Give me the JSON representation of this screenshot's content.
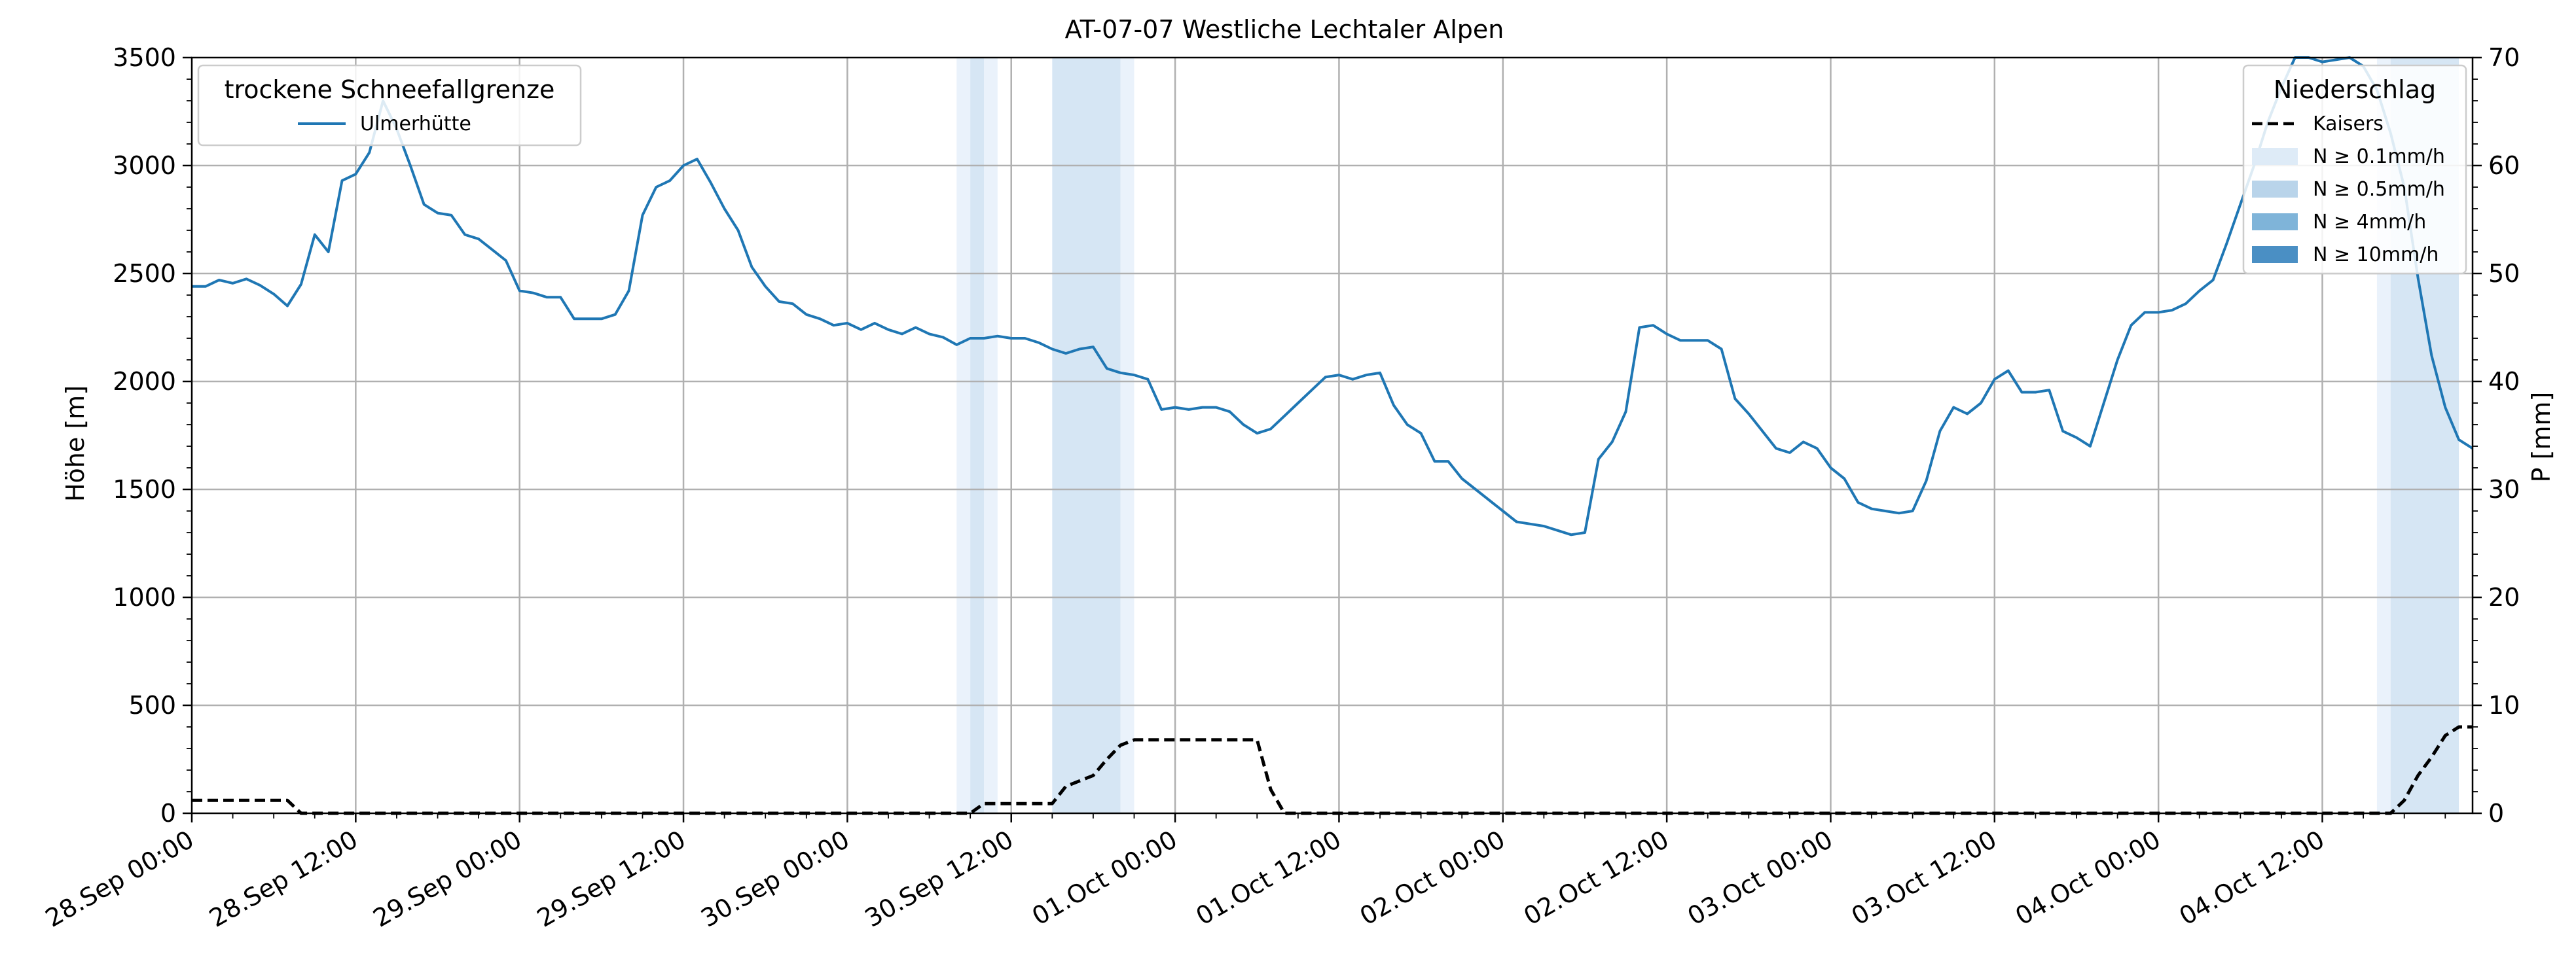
{
  "chart_data": {
    "type": "line",
    "title": "AT-07-07 Westliche Lechtaler Alpen",
    "ylabel": "Höhe [m]",
    "y2label": "P [mm]",
    "x_range_hours": [
      0,
      167
    ],
    "ylim": [
      0,
      3500
    ],
    "y2lim": [
      0,
      70
    ],
    "yticks": [
      "0",
      "500",
      "1000",
      "1500",
      "2000",
      "2500",
      "3000",
      "3500"
    ],
    "y2ticks": [
      "0",
      "10",
      "20",
      "30",
      "40",
      "50",
      "60",
      "70"
    ],
    "xticks": [
      {
        "h": 0,
        "label": "28.Sep 00:00"
      },
      {
        "h": 12,
        "label": "28.Sep 12:00"
      },
      {
        "h": 24,
        "label": "29.Sep 00:00"
      },
      {
        "h": 36,
        "label": "29.Sep 12:00"
      },
      {
        "h": 48,
        "label": "30.Sep 00:00"
      },
      {
        "h": 60,
        "label": "30.Sep 12:00"
      },
      {
        "h": 72,
        "label": "01.Oct 00:00"
      },
      {
        "h": 84,
        "label": "01.Oct 12:00"
      },
      {
        "h": 96,
        "label": "02.Oct 00:00"
      },
      {
        "h": 108,
        "label": "02.Oct 12:00"
      },
      {
        "h": 120,
        "label": "03.Oct 00:00"
      },
      {
        "h": 132,
        "label": "03.Oct 12:00"
      },
      {
        "h": 144,
        "label": "04.Oct 00:00"
      },
      {
        "h": 156,
        "label": "04.Oct 12:00"
      }
    ],
    "grid": true,
    "legend_left": {
      "title": "trockene Schneefallgrenze",
      "entries": [
        {
          "label": "Ulmerhütte",
          "color": "#1f77b4"
        }
      ]
    },
    "legend_right": {
      "title": "Niederschlag",
      "entries": [
        {
          "label": "Kaisers",
          "style": "dashed",
          "color": "#000000"
        },
        {
          "label": "N ≥ 0.1mm/h",
          "color": "#deebf7"
        },
        {
          "label": "N ≥ 0.5mm/h",
          "color": "#b9d4ea"
        },
        {
          "label": "N ≥ 4mm/h",
          "color": "#7fb4d9"
        },
        {
          "label": "N ≥ 10mm/h",
          "color": "#4a8fc4"
        }
      ]
    },
    "precip_bands": [
      {
        "from": 56,
        "to": 57,
        "level": 0
      },
      {
        "from": 57,
        "to": 58,
        "level": 1
      },
      {
        "from": 58,
        "to": 59,
        "level": 0
      },
      {
        "from": 63,
        "to": 68,
        "level": 1
      },
      {
        "from": 68,
        "to": 69,
        "level": 0
      },
      {
        "from": 160,
        "to": 161,
        "level": 0
      },
      {
        "from": 161,
        "to": 166,
        "level": 1
      }
    ],
    "series": [
      {
        "name": "Ulmerhütte",
        "axis": "left",
        "color": "#1f77b4",
        "x": [
          0,
          1,
          2,
          3,
          4,
          5,
          6,
          7,
          8,
          9,
          10,
          11,
          12,
          13,
          14,
          15,
          16,
          17,
          18,
          19,
          20,
          21,
          22,
          23,
          24,
          25,
          26,
          27,
          28,
          29,
          30,
          31,
          32,
          33,
          34,
          35,
          36,
          37,
          38,
          39,
          40,
          41,
          42,
          43,
          44,
          45,
          46,
          47,
          48,
          49,
          50,
          51,
          52,
          53,
          54,
          55,
          56,
          57,
          58,
          59,
          60,
          61,
          62,
          63,
          64,
          65,
          66,
          67,
          68,
          69,
          70,
          71,
          72,
          73,
          74,
          75,
          76,
          77,
          78,
          79,
          80,
          81,
          82,
          83,
          84,
          85,
          86,
          87,
          88,
          89,
          90,
          91,
          92,
          93,
          94,
          95,
          96,
          97,
          98,
          99,
          100,
          101,
          102,
          103,
          104,
          105,
          106,
          107,
          108,
          109,
          110,
          111,
          112,
          113,
          114,
          115,
          116,
          117,
          118,
          119,
          120,
          121,
          122,
          123,
          124,
          125,
          126,
          127,
          128,
          129,
          130,
          131,
          132,
          133,
          134,
          135,
          136,
          137,
          138,
          139,
          140,
          141,
          142,
          143,
          144,
          145,
          146,
          147,
          148,
          149,
          150,
          151,
          152,
          153,
          154,
          155,
          156,
          157,
          158,
          159,
          160,
          161,
          162,
          163,
          164,
          165,
          166,
          167
        ],
        "y": [
          2440,
          2440,
          2470,
          2455,
          2475,
          2445,
          2405,
          2350,
          2450,
          2680,
          2600,
          2930,
          2960,
          3060,
          3300,
          3170,
          3000,
          2820,
          2780,
          2770,
          2680,
          2660,
          2610,
          2560,
          2420,
          2410,
          2390,
          2390,
          2290,
          2290,
          2290,
          2310,
          2420,
          2770,
          2900,
          2930,
          3000,
          3030,
          2920,
          2800,
          2700,
          2530,
          2440,
          2370,
          2360,
          2310,
          2290,
          2260,
          2270,
          2240,
          2270,
          2240,
          2220,
          2250,
          2220,
          2205,
          2170,
          2200,
          2200,
          2210,
          2200,
          2200,
          2180,
          2150,
          2130,
          2150,
          2160,
          2060,
          2040,
          2030,
          2010,
          1870,
          1880,
          1870,
          1880,
          1880,
          1860,
          1800,
          1760,
          1780,
          1840,
          1900,
          1960,
          2020,
          2030,
          2010,
          2030,
          2040,
          1890,
          1800,
          1760,
          1630,
          1630,
          1550,
          1500,
          1450,
          1400,
          1350,
          1340,
          1330,
          1310,
          1290,
          1300,
          1640,
          1720,
          1860,
          2250,
          2260,
          2220,
          2190,
          2190,
          2190,
          2150,
          1920,
          1850,
          1770,
          1690,
          1670,
          1720,
          1690,
          1600,
          1550,
          1440,
          1410,
          1400,
          1390,
          1400,
          1540,
          1770,
          1880,
          1850,
          1900,
          2010,
          2050,
          1950,
          1950,
          1960,
          1770,
          1740,
          1700,
          1900,
          2100,
          2260,
          2320,
          2320,
          2330,
          2360,
          2420,
          2470,
          2640,
          2820,
          3000,
          3200,
          3360,
          3500,
          3500,
          3480,
          3490,
          3500,
          3460,
          3350,
          3150,
          2900,
          2480,
          2120,
          1880,
          1730,
          1690
        ]
      },
      {
        "name": "Kaisers",
        "axis": "right",
        "color": "#000000",
        "dashed": true,
        "x": [
          0,
          6,
          7,
          8,
          57,
          58,
          63,
          64,
          66,
          67,
          68,
          69,
          70,
          71,
          78,
          79,
          80,
          160,
          161,
          162,
          163,
          164,
          165,
          166,
          167
        ],
        "y": [
          1.2,
          1.2,
          1.2,
          0,
          0,
          0.9,
          0.9,
          2.5,
          3.5,
          5,
          6.3,
          6.8,
          6.8,
          6.8,
          6.8,
          2.2,
          0,
          0,
          0,
          1.2,
          3.5,
          5.2,
          7.2,
          8,
          8
        ]
      }
    ]
  }
}
